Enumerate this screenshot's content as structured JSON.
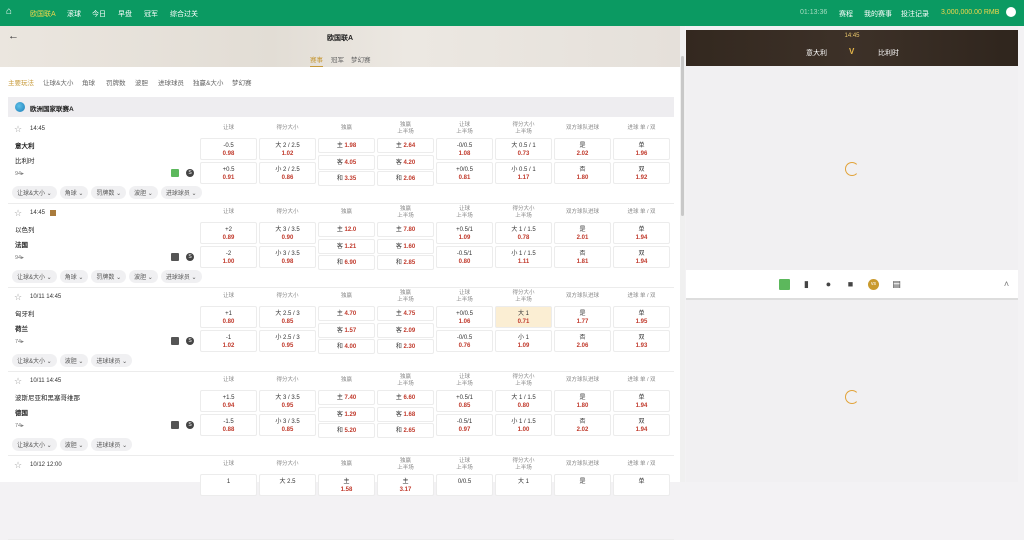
{
  "topnav": {
    "items": [
      "欧国联A",
      "滚球",
      "今日",
      "早盘",
      "冠军",
      "综合过关"
    ],
    "clock": "01:13:36",
    "links": [
      "赛程",
      "我的赛事",
      "投注记录"
    ],
    "balance": "3,000,000.00 RMB"
  },
  "banner": {
    "title": "欧国联A",
    "tabs": [
      "赛事",
      "冠军",
      "梦幻赛"
    ]
  },
  "subtabs": [
    "主要玩法",
    "让球&大小",
    "角球",
    "罚牌数",
    "波胆",
    "进球球员",
    "独赢&大小",
    "梦幻赛"
  ],
  "league": "欧洲国家联赛A",
  "columns": [
    "让球",
    "得分大小",
    "独赢",
    "独赢\n上半场",
    "让球\n上半场",
    "得分大小\n上半场",
    "双方球队进球",
    "进球 单 / 双"
  ],
  "matches": [
    {
      "time": "14:45",
      "home": "意大利",
      "away": "比利时",
      "bold": 0,
      "count": "94▸",
      "chips": [
        "让球&大小",
        "角球",
        "罚牌数",
        "波胆",
        "进球球员"
      ],
      "odds": [
        [
          [
            "-0.5",
            "0.98"
          ],
          [
            "+0.5",
            "0.91"
          ]
        ],
        [
          [
            "大 2 / 2.5",
            "1.02"
          ],
          [
            "小 2 / 2.5",
            "0.86"
          ]
        ],
        [
          [
            "主",
            "1.98"
          ],
          [
            "客",
            "4.05"
          ],
          [
            "和",
            "3.35"
          ]
        ],
        [
          [
            "主",
            "2.64"
          ],
          [
            "客",
            "4.20"
          ],
          [
            "和",
            "2.06"
          ]
        ],
        [
          [
            "-0/0.5",
            "1.08"
          ],
          [
            "+0/0.5",
            "0.81"
          ]
        ],
        [
          [
            "大 0.5 / 1",
            "0.73"
          ],
          [
            "小 0.5 / 1",
            "1.17"
          ]
        ],
        [
          [
            "是",
            "2.02"
          ],
          [
            "否",
            "1.80"
          ]
        ],
        [
          [
            "单",
            "1.96"
          ],
          [
            "双",
            "1.92"
          ]
        ]
      ]
    },
    {
      "time": "14:45",
      "home": "以色列",
      "away": "法国",
      "bold": 1,
      "count": "94▸",
      "chips": [
        "让球&大小",
        "角球",
        "罚牌数",
        "波胆",
        "进球球员"
      ],
      "odds": [
        [
          [
            "+2",
            "0.89"
          ],
          [
            "-2",
            "1.00"
          ]
        ],
        [
          [
            "大 3 / 3.5",
            "0.90"
          ],
          [
            "小 3 / 3.5",
            "0.98"
          ]
        ],
        [
          [
            "主",
            "12.0"
          ],
          [
            "客",
            "1.21"
          ],
          [
            "和",
            "6.90"
          ]
        ],
        [
          [
            "主",
            "7.80"
          ],
          [
            "客",
            "1.60"
          ],
          [
            "和",
            "2.85"
          ]
        ],
        [
          [
            "+0.5/1",
            "1.09"
          ],
          [
            "-0.5/1",
            "0.80"
          ]
        ],
        [
          [
            "大 1 / 1.5",
            "0.78"
          ],
          [
            "小 1 / 1.5",
            "1.11"
          ]
        ],
        [
          [
            "是",
            "2.01"
          ],
          [
            "否",
            "1.81"
          ]
        ],
        [
          [
            "单",
            "1.94"
          ],
          [
            "双",
            "1.94"
          ]
        ]
      ]
    },
    {
      "time": "10/11 14:45",
      "home": "匈牙利",
      "away": "荷兰",
      "bold": 1,
      "count": "74▸",
      "chips": [
        "让球&大小",
        "波胆",
        "进球球员"
      ],
      "odds": [
        [
          [
            "+1",
            "0.80"
          ],
          [
            "-1",
            "1.02"
          ]
        ],
        [
          [
            "大 2.5 / 3",
            "0.85"
          ],
          [
            "小 2.5 / 3",
            "0.95"
          ]
        ],
        [
          [
            "主",
            "4.70"
          ],
          [
            "客",
            "1.57"
          ],
          [
            "和",
            "4.00"
          ]
        ],
        [
          [
            "主",
            "4.75"
          ],
          [
            "客",
            "2.09"
          ],
          [
            "和",
            "2.30"
          ]
        ],
        [
          [
            "+0/0.5",
            "1.06"
          ],
          [
            "-0/0.5",
            "0.76"
          ]
        ],
        [
          [
            "大 1",
            "0.71"
          ],
          [
            "小 1",
            "1.09"
          ]
        ],
        [
          [
            "是",
            "1.77"
          ],
          [
            "否",
            "2.06"
          ]
        ],
        [
          [
            "单",
            "1.95"
          ],
          [
            "双",
            "1.93"
          ]
        ]
      ]
    },
    {
      "time": "10/11 14:45",
      "home": "波斯尼亚和黑塞哥维那",
      "away": "德国",
      "bold": 1,
      "count": "74▸",
      "chips": [
        "让球&大小",
        "波胆",
        "进球球员"
      ],
      "odds": [
        [
          [
            "+1.5",
            "0.94"
          ],
          [
            "-1.5",
            "0.88"
          ]
        ],
        [
          [
            "大 3 / 3.5",
            "0.95"
          ],
          [
            "小 3 / 3.5",
            "0.85"
          ]
        ],
        [
          [
            "主",
            "7.40"
          ],
          [
            "客",
            "1.29"
          ],
          [
            "和",
            "5.20"
          ]
        ],
        [
          [
            "主",
            "6.60"
          ],
          [
            "客",
            "1.68"
          ],
          [
            "和",
            "2.65"
          ]
        ],
        [
          [
            "+0.5/1",
            "0.85"
          ],
          [
            "-0.5/1",
            "0.97"
          ]
        ],
        [
          [
            "大 1 / 1.5",
            "0.80"
          ],
          [
            "小 1 / 1.5",
            "1.00"
          ]
        ],
        [
          [
            "是",
            "1.80"
          ],
          [
            "否",
            "2.02"
          ]
        ],
        [
          [
            "单",
            "1.94"
          ],
          [
            "双",
            "1.94"
          ]
        ]
      ]
    },
    {
      "time": "10/12 12:00",
      "home": "",
      "away": "",
      "bold": 0,
      "count": "",
      "chips": [],
      "odds": [
        [
          [
            "1",
            ""
          ]
        ],
        [
          [
            "大 2.5",
            ""
          ]
        ],
        [
          [
            "主",
            "1.58"
          ]
        ],
        [
          [
            "主",
            "3.17"
          ]
        ],
        [
          [
            "0/0.5",
            ""
          ]
        ],
        [
          [
            "大 1",
            ""
          ]
        ],
        [
          [
            "是",
            ""
          ]
        ],
        [
          [
            "单",
            ""
          ]
        ]
      ]
    }
  ],
  "live": {
    "time": "14:45",
    "home": "意大利",
    "vs": "V",
    "away": "比利时"
  },
  "iconbar": [
    "field-icon",
    "stats-icon",
    "mic-icon",
    "jersey-icon",
    "vs-icon",
    "scoreboard-icon"
  ],
  "colors": {
    "brand": "#0b9a62",
    "accent": "#c79a3a",
    "odds": "#c0392b",
    "highlight": "#fbeed3"
  }
}
